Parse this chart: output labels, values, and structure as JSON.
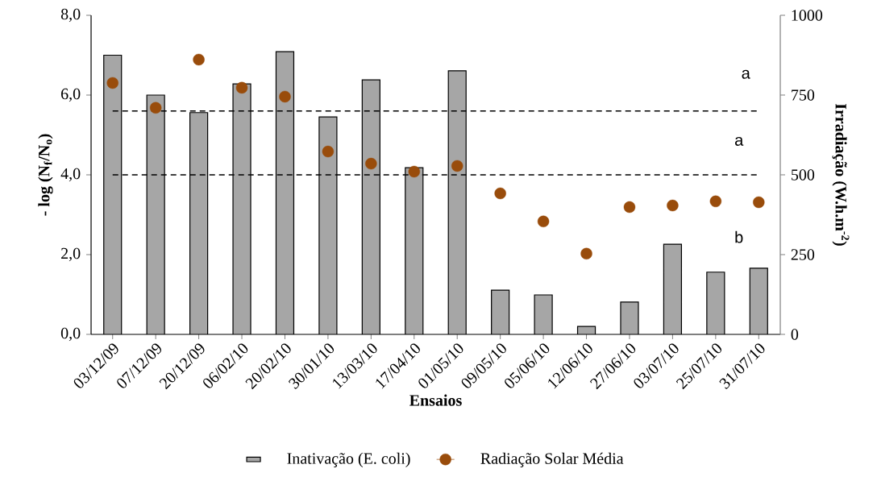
{
  "chart_data": {
    "type": "bar",
    "categories": [
      "03/12/09",
      "07/12/09",
      "20/12/09",
      "06/02/10",
      "20/02/10",
      "30/01/10",
      "13/03/10",
      "17/04/10",
      "01/05/10",
      "09/05/10",
      "05/06/10",
      "12/06/10",
      "27/06/10",
      "03/07/10",
      "25/07/10",
      "31/07/10"
    ],
    "series": [
      {
        "name": "Inativação (E. coli)",
        "type": "bar",
        "color": "#a6a6a6",
        "values": [
          7.0,
          6.0,
          5.56,
          6.28,
          7.09,
          5.45,
          6.38,
          4.18,
          6.61,
          1.11,
          0.99,
          0.2,
          0.81,
          2.26,
          1.56,
          1.66
        ]
      },
      {
        "name": "Radiação Solar Média",
        "type": "scatter",
        "axis": "y2",
        "color": "#994c0b",
        "values": [
          788,
          710,
          861,
          773,
          745,
          573,
          535,
          510,
          528,
          442,
          354,
          253,
          399,
          404,
          417,
          414
        ]
      }
    ],
    "xlabel": "Ensaios",
    "ylabel": "- log (N$_{f}$/N$_{o}$)",
    "y2label": "Irradiação (W.h.m$^{-2}$)",
    "ylim": [
      0,
      8
    ],
    "yticks": [
      {
        "value": 0,
        "label": "0,0"
      },
      {
        "value": 2,
        "label": "2,0"
      },
      {
        "value": 4,
        "label": "4,0"
      },
      {
        "value": 6,
        "label": "6,0"
      },
      {
        "value": 8,
        "label": "8,0"
      }
    ],
    "y2lim": [
      0,
      1000
    ],
    "y2ticks": [
      0,
      250,
      500,
      750,
      1000
    ],
    "ref_lines": [
      {
        "axis": "y",
        "value": 5.6,
        "color": "#000000",
        "line_style": "dashed"
      },
      {
        "axis": "y",
        "value": 4.0,
        "color": "#000000",
        "line_style": "dashed"
      }
    ],
    "annotations": [
      "a",
      "a",
      "b"
    ],
    "marker": "circle",
    "legend": "bottom",
    "grid": false
  }
}
